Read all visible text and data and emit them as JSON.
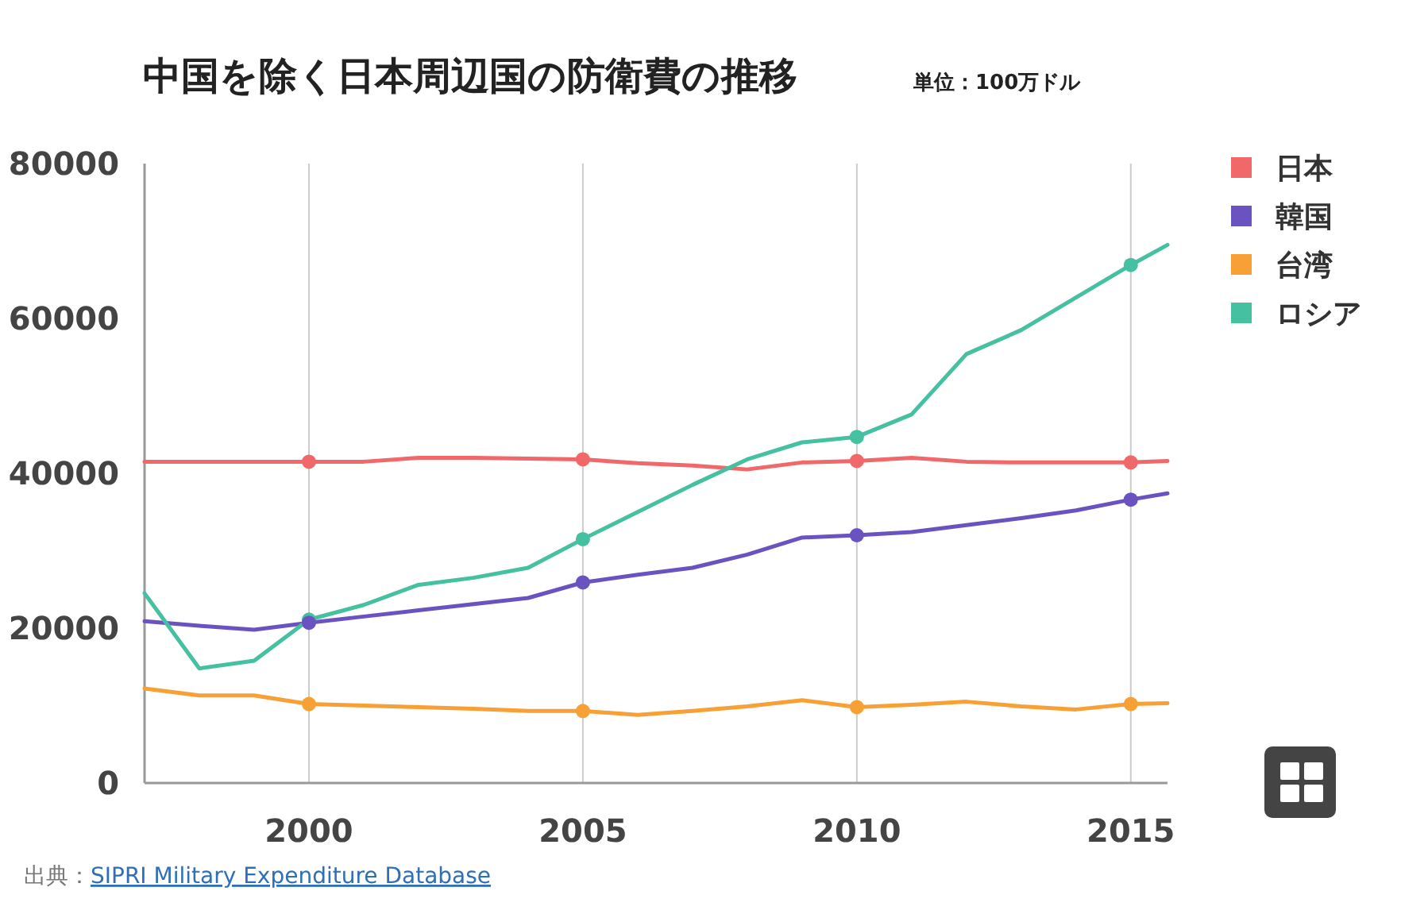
{
  "chart_data": {
    "type": "line",
    "title": "中国を除く日本周辺国の防衛費の推移",
    "subtitle": "単位：100万ドル",
    "x": [
      1997,
      1998,
      1999,
      2000,
      2001,
      2002,
      2003,
      2004,
      2005,
      2006,
      2007,
      2008,
      2009,
      2010,
      2011,
      2012,
      2013,
      2014,
      2015,
      2015.67
    ],
    "series": [
      {
        "name": "日本",
        "color": "#f0686a",
        "values": [
          41500,
          41500,
          41500,
          41500,
          41500,
          42000,
          42000,
          41900,
          41800,
          41300,
          41000,
          40500,
          41400,
          41600,
          42000,
          41500,
          41400,
          41400,
          41400,
          41600
        ]
      },
      {
        "name": "韓国",
        "color": "#6a53c0",
        "values": [
          20900,
          20300,
          19800,
          20700,
          21500,
          22300,
          23100,
          23900,
          25900,
          26900,
          27800,
          29500,
          31700,
          32000,
          32400,
          33300,
          34200,
          35200,
          36600,
          37400
        ]
      },
      {
        "name": "台湾",
        "color": "#f7a035",
        "values": [
          12200,
          11300,
          11300,
          10200,
          10000,
          9800,
          9600,
          9300,
          9300,
          8800,
          9300,
          9900,
          10700,
          9800,
          10100,
          10500,
          9900,
          9500,
          10200,
          10300
        ]
      },
      {
        "name": "ロシア",
        "color": "#45c0a0",
        "values": [
          24500,
          14800,
          15800,
          21100,
          23000,
          25600,
          26500,
          27800,
          31500,
          35000,
          38500,
          41800,
          44000,
          44700,
          47600,
          55400,
          58500,
          62700,
          66900,
          69500
        ]
      },
      {
        "type": "scatter",
        "marker": "circle",
        "color": "#f0686a",
        "x": [
          2000,
          2005,
          2010,
          2015
        ],
        "values": [
          41500,
          41800,
          41600,
          41400
        ]
      },
      {
        "type": "scatter",
        "marker": "circle",
        "color": "#f7a035",
        "x": [
          2000,
          2005,
          2010,
          2015
        ],
        "values": [
          10200,
          9300,
          9800,
          10200
        ]
      },
      {
        "type": "scatter",
        "marker": "circle",
        "color": "#45c0a0",
        "x": [
          2000,
          2005,
          2010,
          2015
        ],
        "values": [
          21100,
          31500,
          44700,
          66900
        ]
      },
      {
        "type": "scatter",
        "marker": "circle",
        "color": "#6a53c0",
        "x": [
          2000,
          2005,
          2010,
          2015
        ],
        "values": [
          20700,
          25900,
          32000,
          36600
        ]
      }
    ],
    "xlim": [
      1997,
      2015.67
    ],
    "xticks": [
      2000,
      2005,
      2010,
      2015
    ],
    "ylim": [
      0,
      80000
    ],
    "yticks": [
      0,
      20000,
      40000,
      60000,
      80000
    ],
    "grid": "x",
    "legend": "right",
    "annotations": [
      "出典：SIPRI Military Expenditure Database"
    ]
  }
}
